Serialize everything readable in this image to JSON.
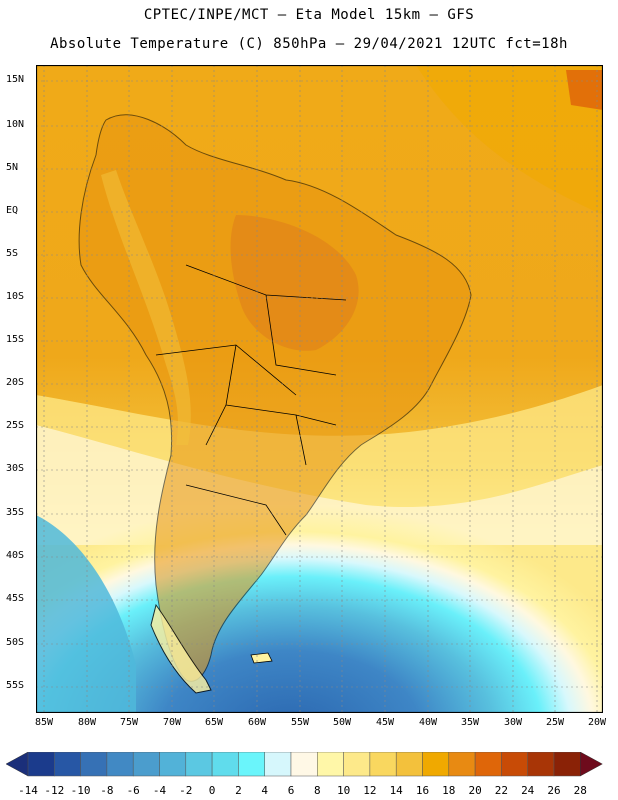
{
  "title_line1": "CPTEC/INPE/MCT –  Eta Model 15km – GFS",
  "title_line2": "Absolute Temperature (C) 850hPa – 29/04/2021 12UTC fct=18h",
  "lat_labels": [
    "15N",
    "10N",
    "5N",
    "EQ",
    "5S",
    "10S",
    "15S",
    "20S",
    "25S",
    "30S",
    "35S",
    "40S",
    "45S",
    "50S",
    "55S"
  ],
  "lon_labels": [
    "85W",
    "80W",
    "75W",
    "70W",
    "65W",
    "60W",
    "55W",
    "50W",
    "45W",
    "40W",
    "35W",
    "30W",
    "25W",
    "20W"
  ],
  "colorbar": {
    "labels": [
      "-14",
      "-12",
      "-10",
      "-8",
      "-6",
      "-4",
      "-2",
      "0",
      "2",
      "4",
      "6",
      "8",
      "10",
      "12",
      "14",
      "16",
      "18",
      "20",
      "22",
      "24",
      "26",
      "28"
    ],
    "colors": [
      "#1b3b8c",
      "#2757a5",
      "#3671b5",
      "#4189c4",
      "#4b9dcd",
      "#52b2d8",
      "#5bc8e2",
      "#60dcec",
      "#6af5fb",
      "#d6f7fc",
      "#fff8e6",
      "#fff7a8",
      "#fde98a",
      "#f9d75f",
      "#f3c13c",
      "#f0a900",
      "#e88a12",
      "#df6609",
      "#c84b06",
      "#a83506",
      "#8a2206"
    ],
    "lower_arrow_color": "#1b2f7a",
    "upper_arrow_color": "#6e0b1c"
  },
  "map": {
    "ocean_warm": "#eea51b",
    "land_warm": "#e8950f",
    "coast_color": "#000000",
    "grid_color": "#888888"
  }
}
